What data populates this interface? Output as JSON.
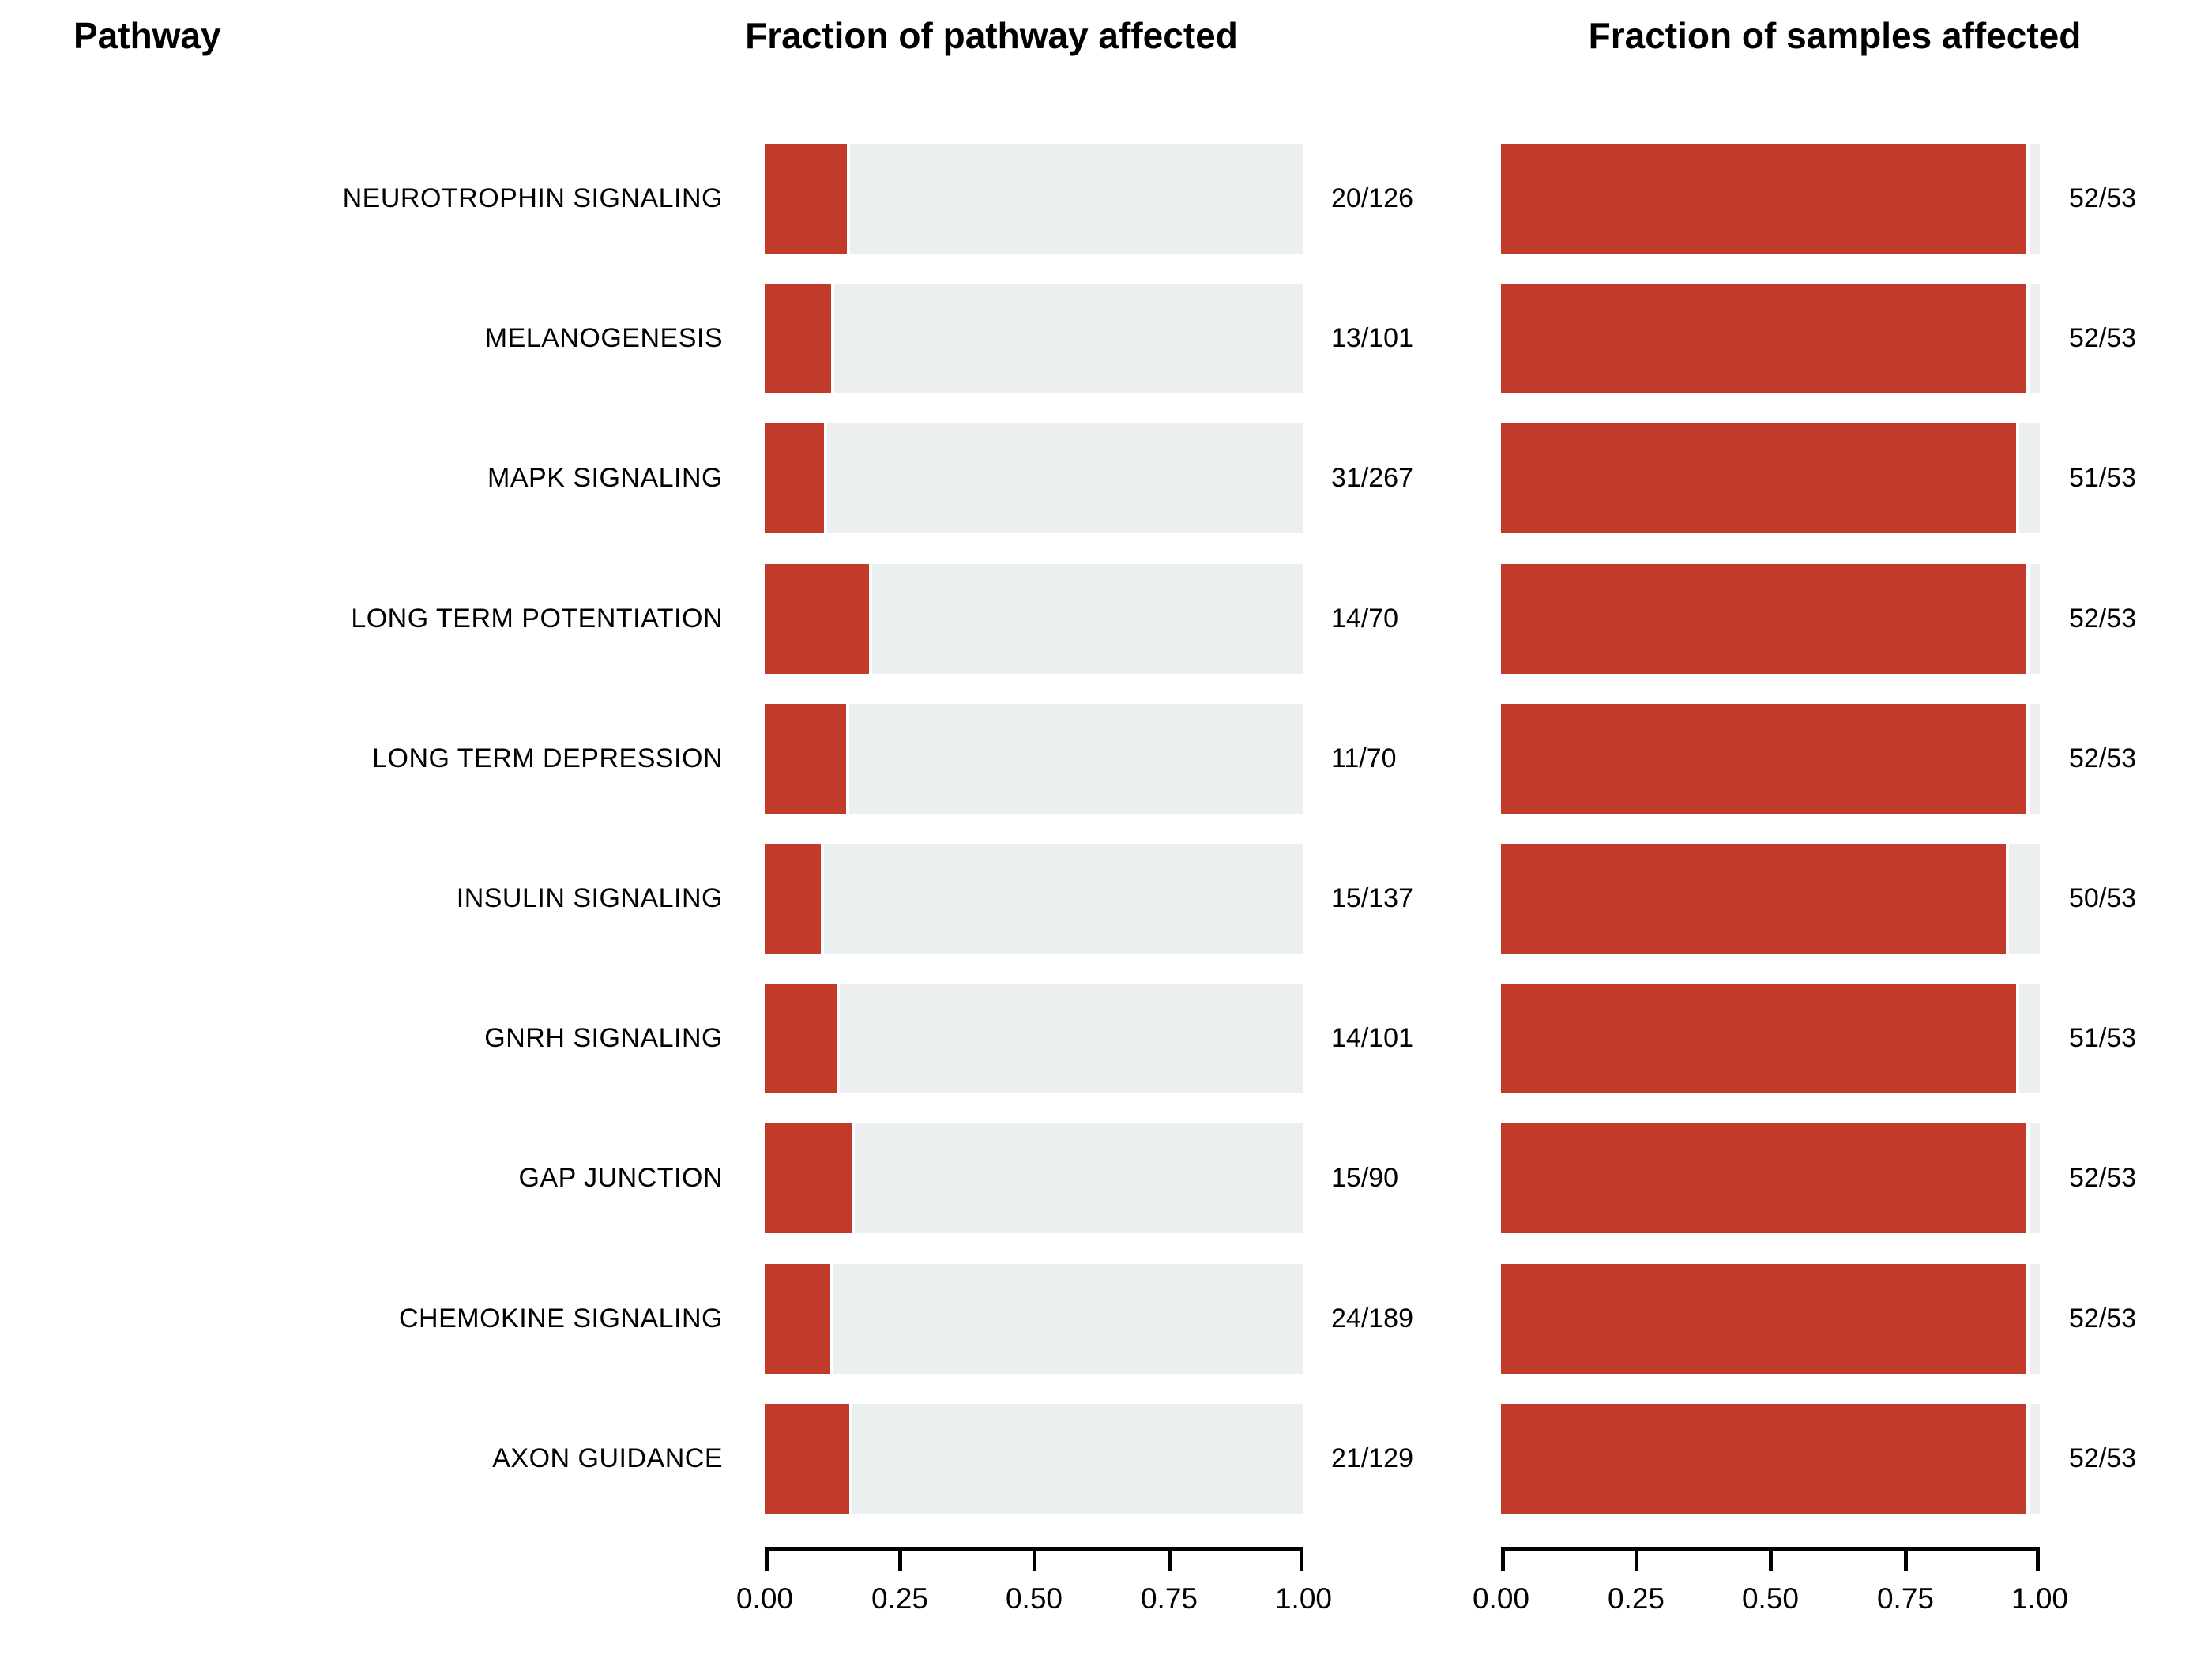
{
  "page": {
    "background": "#FFFFFF"
  },
  "headers": {
    "pathway": "Pathway",
    "pathway_fraction": "Fraction of pathway affected",
    "samples_fraction": "Fraction of samples affected"
  },
  "colors": {
    "bar_fill": "#C23B2A",
    "bar_track": "#ECEFF0",
    "axis": "#000000",
    "text": "#000000"
  },
  "axis": {
    "min": 0,
    "max": 1,
    "tick_labels": [
      "0.00",
      "0.25",
      "0.50",
      "0.75",
      "1.00"
    ],
    "tick_positions": [
      0,
      0.25,
      0.5,
      0.75,
      1.0
    ]
  },
  "chart_data": {
    "type": "bar",
    "orientation": "horizontal",
    "title": "",
    "xlabel": "",
    "ylabel": "Pathway",
    "xlim": [
      0,
      1
    ],
    "x_ticks": [
      0,
      0.25,
      0.5,
      0.75,
      1.0
    ],
    "grid": false,
    "legend": "none",
    "categories": [
      "NEUROTROPHIN SIGNALING",
      "MELANOGENESIS",
      "MAPK SIGNALING",
      "LONG TERM POTENTIATION",
      "LONG TERM DEPRESSION",
      "INSULIN SIGNALING",
      "GNRH SIGNALING",
      "GAP JUNCTION",
      "CHEMOKINE SIGNALING",
      "AXON GUIDANCE"
    ],
    "series": [
      {
        "name": "Fraction of pathway affected",
        "labels": [
          "20/126",
          "13/101",
          "31/267",
          "14/70",
          "11/70",
          "15/137",
          "14/101",
          "15/90",
          "24/189",
          "21/129"
        ],
        "numerators": [
          20,
          13,
          31,
          14,
          11,
          15,
          14,
          15,
          24,
          21
        ],
        "denominators": [
          126,
          101,
          267,
          70,
          70,
          137,
          101,
          90,
          189,
          129
        ],
        "values": [
          0.1587,
          0.1287,
          0.1161,
          0.2,
          0.1571,
          0.1095,
          0.1386,
          0.1667,
          0.127,
          0.1628
        ]
      },
      {
        "name": "Fraction of samples affected",
        "labels": [
          "52/53",
          "52/53",
          "51/53",
          "52/53",
          "52/53",
          "50/53",
          "51/53",
          "52/53",
          "52/53",
          "52/53"
        ],
        "numerators": [
          52,
          52,
          51,
          52,
          52,
          50,
          51,
          52,
          52,
          52
        ],
        "denominators": [
          53,
          53,
          53,
          53,
          53,
          53,
          53,
          53,
          53,
          53
        ],
        "values": [
          0.9811,
          0.9811,
          0.9623,
          0.9811,
          0.9811,
          0.9434,
          0.9623,
          0.9811,
          0.9811,
          0.9811
        ]
      }
    ]
  }
}
